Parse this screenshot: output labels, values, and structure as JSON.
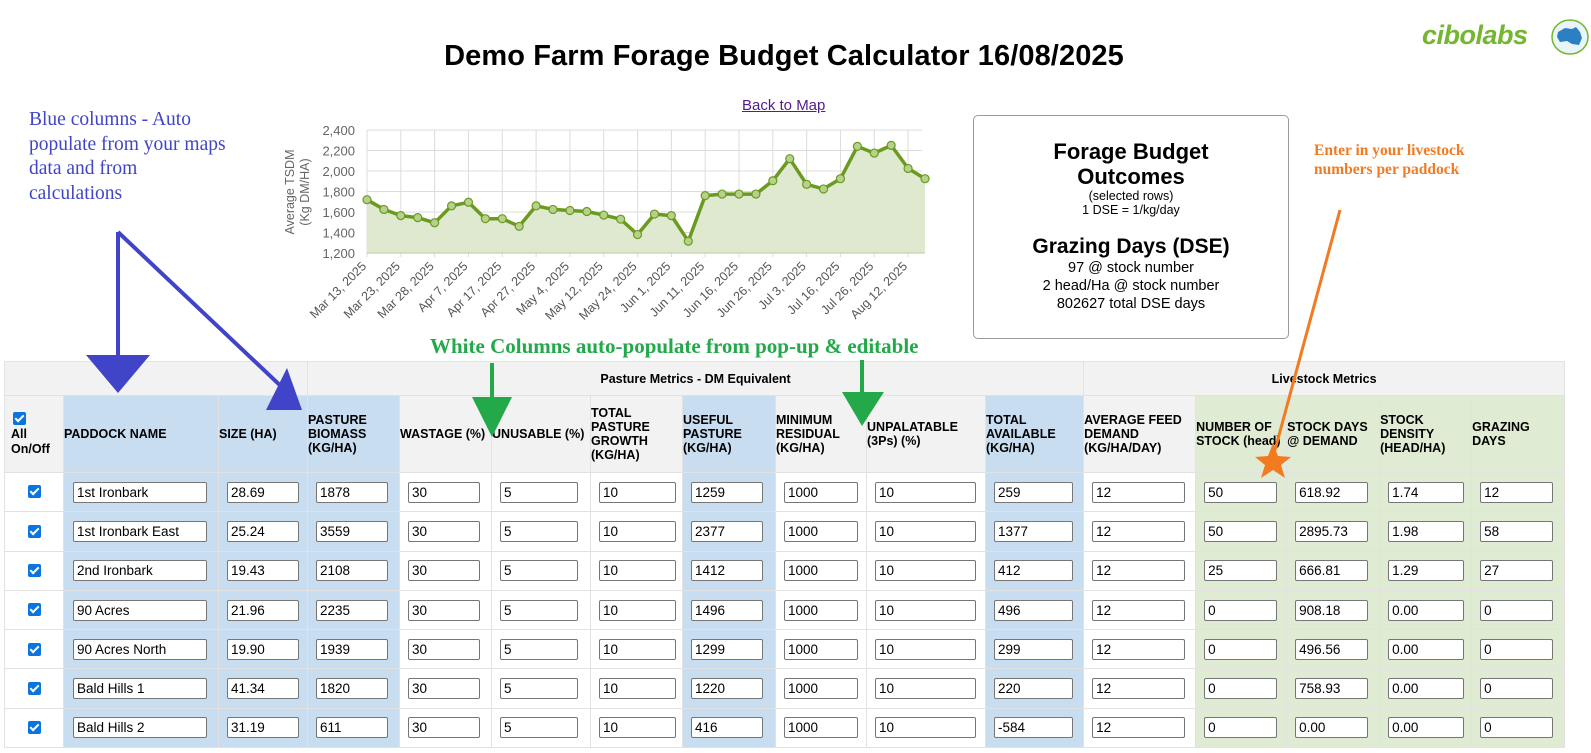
{
  "page": {
    "title": "Demo Farm Forage Budget Calculator 16/08/2025",
    "back_link": "Back to Map",
    "logo": {
      "part1": "cibo",
      "part2": "labs",
      "icon": "australia-globe-icon"
    }
  },
  "annotations": {
    "blue_note": "Blue columns - Auto populate from your maps data and from calculations",
    "green_note": "White Columns auto-populate from pop-up  & editable",
    "orange_note": "Enter in your livestock numbers per paddock",
    "colors": {
      "blue": "#4044c8",
      "green": "#23a84a",
      "orange": "#f27b22"
    }
  },
  "outcomes": {
    "title": "Forage Budget Outcomes",
    "subtitle1": "(selected rows)",
    "subtitle2": "1 DSE = 1/kg/day",
    "grazing_title": "Grazing Days (DSE)",
    "line1": "97 @ stock number",
    "line2": "2 head/Ha @ stock number",
    "line3": "802627 total DSE days"
  },
  "chart_data": {
    "type": "area",
    "title": "",
    "xlabel": "",
    "ylabel": "Average TSDM (Kg DM/HA)",
    "ylim": [
      1200,
      2400
    ],
    "yticks": [
      "1,200",
      "1,400",
      "1,600",
      "1,800",
      "2,000",
      "2,200",
      "2,400"
    ],
    "xtick_labels": [
      "Mar 13, 2025",
      "Mar 23, 2025",
      "Mar 28, 2025",
      "Apr 7, 2025",
      "Apr 17, 2025",
      "Apr 27, 2025",
      "May 4, 2025",
      "May 12, 2025",
      "May 24, 2025",
      "Jun 1, 2025",
      "Jun 11, 2025",
      "Jun 16, 2025",
      "Jun 26, 2025",
      "Jul 3, 2025",
      "Jul 16, 2025",
      "Jul 26, 2025",
      "Aug 12, 2025"
    ],
    "grid": true,
    "line_color": "#6a9a1f",
    "fill_color": "#dfe9cf",
    "series": [
      {
        "name": "Average TSDM",
        "values": [
          1720,
          1625,
          1565,
          1545,
          1495,
          1660,
          1695,
          1535,
          1535,
          1460,
          1660,
          1625,
          1615,
          1605,
          1570,
          1530,
          1380,
          1580,
          1565,
          1315,
          1760,
          1775,
          1775,
          1775,
          1905,
          2120,
          1870,
          1825,
          1925,
          2240,
          2175,
          2250,
          2025,
          1925
        ]
      }
    ]
  },
  "table": {
    "group_headers": {
      "pasture": "Pasture Metrics - DM Equivalent",
      "livestock": "Livestock Metrics"
    },
    "all_toggle": {
      "label1": "All",
      "label2": "On/Off"
    },
    "columns": [
      "PADDOCK NAME",
      "SIZE (HA)",
      "PASTURE BIOMASS (KG/HA)",
      "WASTAGE (%)",
      "UNUSABLE (%)",
      "TOTAL PASTURE GROWTH (KG/HA)",
      "USEFUL PASTURE (KG/HA)",
      "MINIMUM RESIDUAL (KG/HA)",
      "UNPALATABLE (3Ps) (%)",
      "TOTAL AVAILABLE (KG/HA)",
      "AVERAGE FEED DEMAND (KG/HA/DAY)",
      "NUMBER OF STOCK (head)",
      "STOCK DAYS @ DEMAND",
      "STOCK DENSITY (HEAD/HA)",
      "GRAZING DAYS"
    ],
    "rows": [
      [
        "1st Ironbark",
        "28.69",
        "1878",
        "30",
        "5",
        "10",
        "1259",
        "1000",
        "10",
        "259",
        "12",
        "50",
        "618.92",
        "1.74",
        "12"
      ],
      [
        "1st Ironbark East",
        "25.24",
        "3559",
        "30",
        "5",
        "10",
        "2377",
        "1000",
        "10",
        "1377",
        "12",
        "50",
        "2895.73",
        "1.98",
        "58"
      ],
      [
        "2nd Ironbark",
        "19.43",
        "2108",
        "30",
        "5",
        "10",
        "1412",
        "1000",
        "10",
        "412",
        "12",
        "25",
        "666.81",
        "1.29",
        "27"
      ],
      [
        "90 Acres",
        "21.96",
        "2235",
        "30",
        "5",
        "10",
        "1496",
        "1000",
        "10",
        "496",
        "12",
        "0",
        "908.18",
        "0.00",
        "0"
      ],
      [
        "90 Acres North",
        "19.90",
        "1939",
        "30",
        "5",
        "10",
        "1299",
        "1000",
        "10",
        "299",
        "12",
        "0",
        "496.56",
        "0.00",
        "0"
      ],
      [
        "Bald Hills 1",
        "41.34",
        "1820",
        "30",
        "5",
        "10",
        "1220",
        "1000",
        "10",
        "220",
        "12",
        "0",
        "758.93",
        "0.00",
        "0"
      ],
      [
        "Bald Hills 2",
        "31.19",
        "611",
        "30",
        "5",
        "10",
        "416",
        "1000",
        "10",
        "-584",
        "12",
        "0",
        "0.00",
        "0.00",
        "0"
      ]
    ]
  }
}
